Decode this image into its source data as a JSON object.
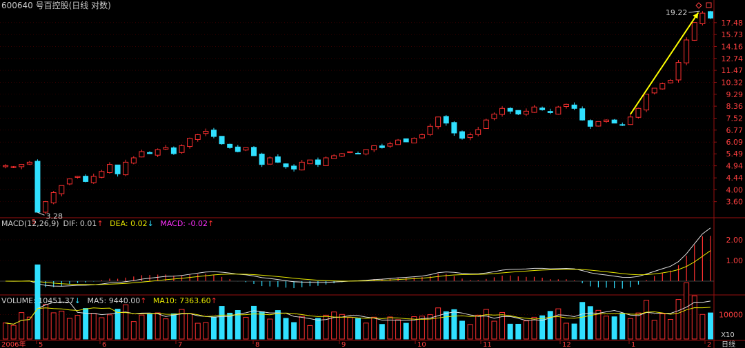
{
  "title": "600640 号百控股(日线 对数)",
  "macd": {
    "label": "MACD(12,26,9)",
    "dif": "DIF: 0.01",
    "dif_arrow": "↑",
    "dea": "DEA: 0.02",
    "dea_arrow": "↓",
    "macd": "MACD: -0.02",
    "macd_arrow": "↑",
    "axis": [
      "2.00",
      "1.00"
    ]
  },
  "volume": {
    "label": "VOLUME: 10451.37",
    "vol_arrow": "↓",
    "ma5": "MA5: 9440.00",
    "ma5_arrow": "↑",
    "ma10": "MA10: 7363.60",
    "ma10_arrow": "↑",
    "axis": [
      "10000"
    ],
    "unit": "X10"
  },
  "chart_data": {
    "type": "candlestick",
    "title": "600640 号百控股(日线 对数)",
    "scale": "log",
    "price_axis": [
      "17.48",
      "15.73",
      "14.16",
      "12.74",
      "11.47",
      "10.32",
      "9.29",
      "8.36",
      "7.52",
      "6.77",
      "6.09",
      "5.49",
      "4.94",
      "4.44",
      "4.00",
      "3.60"
    ],
    "x_axis": [
      "2006年",
      "5",
      "6",
      "7",
      "8",
      "9",
      "10",
      "11",
      "12",
      "1",
      "2",
      "日线"
    ],
    "annotations": {
      "low": "3.28",
      "high": "19.22"
    },
    "close_series": [
      4.95,
      4.9,
      5.0,
      5.1,
      3.28,
      3.6,
      3.9,
      4.15,
      4.4,
      4.5,
      4.3,
      4.5,
      4.7,
      5.0,
      4.6,
      5.1,
      5.3,
      5.6,
      5.5,
      5.7,
      5.8,
      5.5,
      5.9,
      6.3,
      6.5,
      6.7,
      6.4,
      6.0,
      5.8,
      5.6,
      5.8,
      5.4,
      5.0,
      5.3,
      5.1,
      4.9,
      4.8,
      5.1,
      5.2,
      5.0,
      5.3,
      5.4,
      5.5,
      5.6,
      5.5,
      5.7,
      5.9,
      5.8,
      6.0,
      6.2,
      6.1,
      6.3,
      6.5,
      7.0,
      7.6,
      7.2,
      6.6,
      6.3,
      6.5,
      6.8,
      7.4,
      7.8,
      8.2,
      8.0,
      7.8,
      8.0,
      8.3,
      8.1,
      7.9,
      8.3,
      8.5,
      8.2,
      7.4,
      7.0,
      7.3,
      7.4,
      7.2,
      7.1,
      7.6,
      8.2,
      9.3,
      9.8,
      10.2,
      10.5,
      12.3,
      15.0,
      17.5,
      19.0,
      18.2
    ],
    "candle_up_color": "#ff3030",
    "candle_down_color": "#30e0ff",
    "trend_line_color": "#ffff00"
  }
}
